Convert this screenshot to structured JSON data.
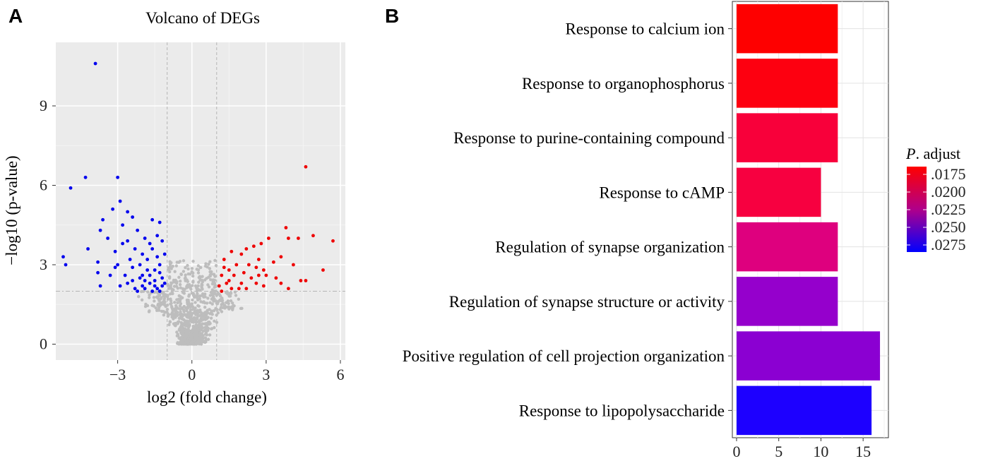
{
  "figure": {
    "panel_a_label": "A",
    "panel_b_label": "B"
  },
  "chart_data": [
    {
      "type": "scatter",
      "title": "Volcano of DEGs",
      "xlabel": "log2 (fold change)",
      "ylabel": "−log10 (p-value)",
      "xlim": [
        -5.5,
        6.2
      ],
      "ylim": [
        -0.6,
        11.4
      ],
      "xticks": [
        -3,
        0,
        3,
        6
      ],
      "xtick_labels": [
        "−3",
        "0",
        "3",
        "6"
      ],
      "yticks": [
        0,
        3,
        6,
        9
      ],
      "ytick_labels": [
        "0",
        "3",
        "6",
        "9"
      ],
      "grid": true,
      "thresholds": {
        "x": [
          -1,
          1
        ],
        "y": 2
      },
      "colors": {
        "down": "#0000ee",
        "up": "#ee0000",
        "ns": "#bdbdbd",
        "panel": "#ebebeb"
      },
      "series": [
        {
          "values": [
            [
              -3.9,
              10.6
            ],
            [
              -4.3,
              6.3
            ],
            [
              -4.9,
              5.9
            ],
            [
              -3.0,
              6.3
            ],
            [
              -2.9,
              5.4
            ],
            [
              -2.6,
              5.0
            ],
            [
              -3.2,
              5.1
            ],
            [
              -3.6,
              4.7
            ],
            [
              -2.4,
              4.8
            ],
            [
              -1.6,
              4.7
            ],
            [
              -1.3,
              4.6
            ],
            [
              -3.7,
              4.3
            ],
            [
              -2.8,
              4.5
            ],
            [
              -2.2,
              4.3
            ],
            [
              -1.9,
              4.0
            ],
            [
              -3.4,
              4.0
            ],
            [
              -2.6,
              3.9
            ],
            [
              -1.7,
              3.8
            ],
            [
              -1.2,
              3.9
            ],
            [
              -4.2,
              3.6
            ],
            [
              -3.1,
              3.5
            ],
            [
              -2.0,
              3.4
            ],
            [
              -1.4,
              3.3
            ],
            [
              -5.2,
              3.3
            ],
            [
              -5.1,
              3.0
            ],
            [
              -3.8,
              3.1
            ],
            [
              -3.0,
              3.0
            ],
            [
              -2.4,
              2.9
            ],
            [
              -1.8,
              2.8
            ],
            [
              -1.3,
              2.7
            ],
            [
              -3.8,
              2.7
            ],
            [
              -2.7,
              2.6
            ],
            [
              -2.1,
              2.5
            ],
            [
              -1.5,
              2.4
            ],
            [
              -1.1,
              2.3
            ],
            [
              -3.7,
              2.2
            ],
            [
              -2.9,
              2.2
            ],
            [
              -2.3,
              2.1
            ],
            [
              -1.9,
              2.1
            ],
            [
              -1.4,
              2.1
            ],
            [
              -1.2,
              2.2
            ],
            [
              -1.6,
              3.6
            ],
            [
              -2.5,
              3.2
            ],
            [
              -1.3,
              3.0
            ],
            [
              -2.0,
              2.6
            ],
            [
              -1.7,
              2.3
            ],
            [
              -2.6,
              2.3
            ],
            [
              -1.5,
              2.8
            ],
            [
              -1.2,
              2.5
            ],
            [
              -3.3,
              2.6
            ],
            [
              -2.8,
              3.8
            ],
            [
              -2.3,
              3.6
            ],
            [
              -1.8,
              3.2
            ],
            [
              -1.1,
              3.4
            ],
            [
              -1.9,
              2.4
            ],
            [
              -2.2,
              2.0
            ],
            [
              -1.6,
              2.0
            ],
            [
              -1.3,
              2.0
            ],
            [
              -2.4,
              2.4
            ],
            [
              -3.1,
              2.9
            ],
            [
              -1.4,
              4.1
            ],
            [
              -2.1,
              3.0
            ],
            [
              -1.7,
              2.6
            ],
            [
              -1.5,
              2.2
            ],
            [
              -2.0,
              2.2
            ]
          ],
          "color_key": "down"
        },
        {
          "values": [
            [
              4.6,
              6.7
            ],
            [
              4.9,
              4.1
            ],
            [
              5.7,
              3.9
            ],
            [
              3.8,
              4.4
            ],
            [
              4.3,
              4.0
            ],
            [
              3.9,
              4.0
            ],
            [
              3.1,
              4.0
            ],
            [
              2.8,
              3.8
            ],
            [
              2.5,
              3.7
            ],
            [
              2.2,
              3.6
            ],
            [
              3.6,
              3.3
            ],
            [
              4.1,
              3.0
            ],
            [
              1.6,
              3.5
            ],
            [
              2.0,
              3.4
            ],
            [
              1.3,
              3.2
            ],
            [
              2.7,
              3.2
            ],
            [
              3.3,
              3.1
            ],
            [
              1.8,
              3.0
            ],
            [
              2.3,
              3.0
            ],
            [
              1.5,
              2.8
            ],
            [
              2.9,
              2.8
            ],
            [
              2.1,
              2.7
            ],
            [
              1.7,
              2.6
            ],
            [
              3.0,
              2.6
            ],
            [
              1.2,
              2.6
            ],
            [
              5.3,
              2.8
            ],
            [
              4.6,
              2.4
            ],
            [
              4.4,
              2.4
            ],
            [
              3.6,
              2.3
            ],
            [
              2.6,
              2.3
            ],
            [
              2.0,
              2.3
            ],
            [
              1.4,
              2.3
            ],
            [
              1.1,
              2.2
            ],
            [
              1.6,
              2.1
            ],
            [
              2.2,
              2.1
            ],
            [
              2.9,
              2.2
            ],
            [
              3.9,
              2.1
            ],
            [
              1.3,
              2.9
            ],
            [
              2.4,
              2.5
            ],
            [
              1.9,
              2.1
            ],
            [
              2.6,
              2.9
            ],
            [
              3.4,
              2.5
            ],
            [
              1.5,
              2.4
            ],
            [
              1.2,
              2.0
            ],
            [
              2.7,
              2.6
            ]
          ],
          "color_key": "up"
        }
      ]
    },
    {
      "type": "bar",
      "orientation": "horizontal",
      "categories": [
        "Response to calcium ion",
        "Response to organophosphorus",
        "Response to purine-containing compound",
        "Response to cAMP",
        "Regulation of synapse organization",
        "Regulation of synapse structure or activity",
        "Positive regulation of cell projection organization",
        "Response to lipopolysaccharide"
      ],
      "values": [
        12,
        12,
        12,
        10,
        12,
        12,
        17,
        16
      ],
      "colors": [
        "#fe0000",
        "#fd0010",
        "#f8003a",
        "#f70040",
        "#de007e",
        "#9500cc",
        "#8b00d2",
        "#1d00ff"
      ],
      "xlim": [
        -0.5,
        18.0
      ],
      "xticks": [
        0,
        5,
        10,
        15
      ],
      "xtick_labels": [
        "0",
        "5",
        "10",
        "15"
      ],
      "grid": true,
      "legend": {
        "title_italic": "P",
        "title_rest": ". adjust",
        "placement": "right",
        "labels": [
          ".0175",
          ".0200",
          ".0225",
          ".0250",
          ".0275"
        ],
        "gradient_top": "#ff0000",
        "gradient_bottom": "#0000ff"
      }
    }
  ]
}
